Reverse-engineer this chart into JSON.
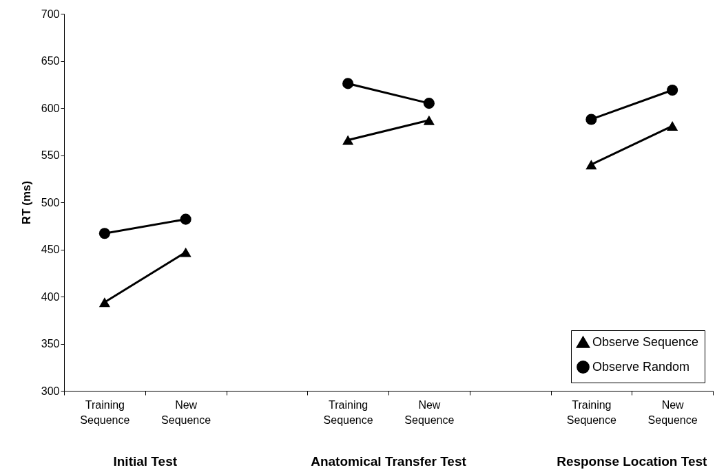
{
  "chart_data": {
    "type": "line",
    "ylabel": "RT (ms)",
    "categories": [
      "Training Sequence",
      "New Sequence",
      null,
      "Training Sequence",
      "New Sequence",
      null,
      "Training Sequence",
      "New Sequence"
    ],
    "series": [
      {
        "name": "Observe Sequence",
        "color": "#000000",
        "marker": "triangle",
        "values": [
          394,
          447,
          null,
          566,
          587,
          null,
          540,
          581
        ]
      },
      {
        "name": "Observe Random",
        "color": "#000000",
        "marker": "circle",
        "values": [
          467,
          482,
          null,
          626,
          605,
          null,
          588,
          619
        ]
      }
    ],
    "ylim": [
      300,
      700
    ],
    "yticks": [
      300,
      350,
      400,
      450,
      500,
      550,
      600,
      650,
      700
    ],
    "grid": false,
    "legend": "bottom right",
    "annotations": [
      "Initial Test",
      "Anatomical Transfer Test",
      "Response Location Test"
    ]
  }
}
